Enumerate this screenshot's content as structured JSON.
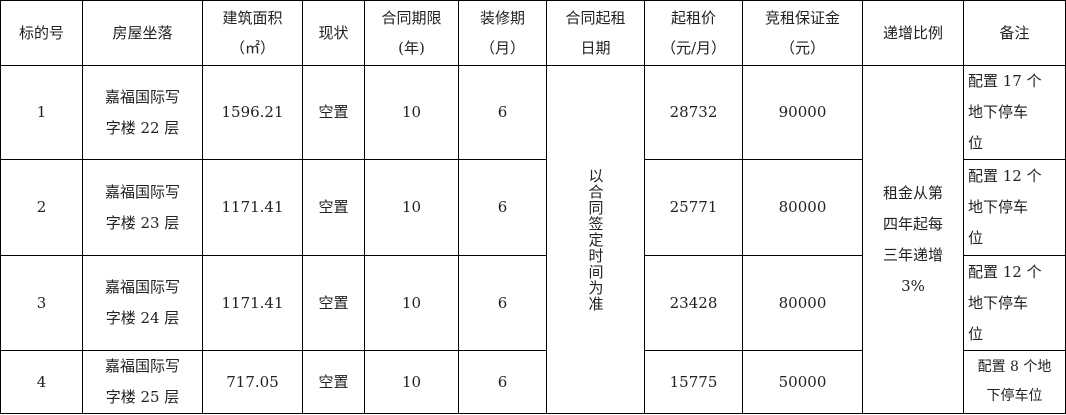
{
  "headers": [
    "标的号",
    "房屋坐落",
    "建筑面积\n（㎡）",
    "现状",
    "合同期限\n(年)",
    "装修期\n(月)",
    "合同起租\n日期",
    "起租价\n(元/月)",
    "竞租保证金\n(元)",
    "递增比例",
    "备注"
  ],
  "header_lines": [
    [
      "标的号"
    ],
    [
      "房屋坐落"
    ],
    [
      "建筑面积",
      "（㎡）"
    ],
    [
      "现状"
    ],
    [
      "合同期限",
      "(年)"
    ],
    [
      "装修期",
      "（月）"
    ],
    [
      "合同起租",
      "日期"
    ],
    [
      "起租价",
      "（元/月）"
    ],
    [
      "竞租保证金",
      "（元）"
    ],
    [
      "递增比例"
    ],
    [
      "备注"
    ]
  ],
  "rows": [
    {
      "id": "1",
      "location": [
        "嘉福国际写",
        "字楼 22 层"
      ],
      "area": "1596.21",
      "status": "空置",
      "term": "10",
      "fitout": "6",
      "rent": "28732",
      "deposit": "90000",
      "remark": [
        "配置 17 个",
        "地下停车",
        "位"
      ]
    },
    {
      "id": "2",
      "location": [
        "嘉福国际写",
        "字楼 23 层"
      ],
      "area": "1171.41",
      "status": "空置",
      "term": "10",
      "fitout": "6",
      "rent": "25771",
      "deposit": "80000",
      "remark": [
        "配置 12 个",
        "地下停车",
        "位"
      ]
    },
    {
      "id": "3",
      "location": [
        "嘉福国际写",
        "字楼 24 层"
      ],
      "area": "1171.41",
      "status": "空置",
      "term": "10",
      "fitout": "6",
      "rent": "23428",
      "deposit": "80000",
      "remark": [
        "配置 12 个",
        "地下停车",
        "位"
      ]
    },
    {
      "id": "4",
      "location": [
        "嘉福国际写",
        "字楼 25 层"
      ],
      "area": "717.05",
      "status": "空置",
      "term": "10",
      "fitout": "6",
      "rent": "15775",
      "deposit": "50000",
      "remark": [
        "配置 8 个地",
        "下停车位"
      ]
    }
  ],
  "start_date": "以合同签定时间为准",
  "increase": [
    "租金从第",
    "四年起每",
    "三年递增",
    "3%"
  ]
}
